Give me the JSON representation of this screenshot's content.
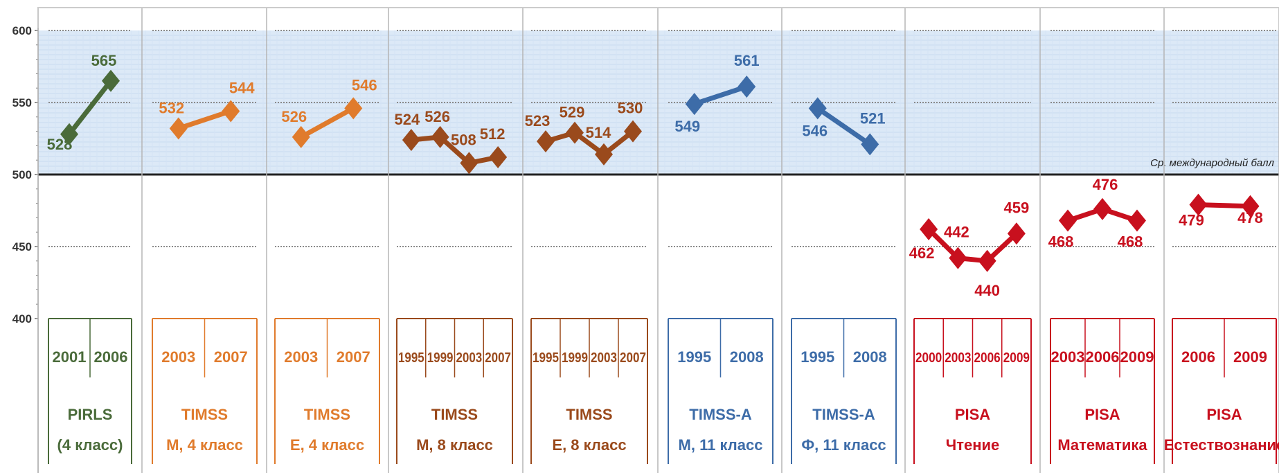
{
  "chart_data": {
    "type": "line",
    "title": "",
    "xlabel": "",
    "ylabel": "",
    "ylim": [
      400,
      600
    ],
    "yticks": [
      400,
      450,
      500,
      550,
      600
    ],
    "grid": true,
    "reference_line": {
      "value": 500,
      "label": "Ср. международный балл"
    },
    "highlight_band": [
      500,
      600
    ],
    "colors": {
      "green": "#4a6b3a",
      "orange": "#e07b2c",
      "brown": "#9a4a1c",
      "blue": "#3d6ca8",
      "red": "#c8101e",
      "band": "#dce9f7"
    },
    "groups": [
      {
        "name_line1": "PIRLS",
        "name_line2": "(4 класс)",
        "color": "#4a6b3a",
        "years": [
          "2001",
          "2006"
        ],
        "values": [
          528,
          565
        ]
      },
      {
        "name_line1": "TIMSS",
        "name_line2": "М, 4 класс",
        "color": "#e07b2c",
        "years": [
          "2003",
          "2007"
        ],
        "values": [
          532,
          544
        ]
      },
      {
        "name_line1": "TIMSS",
        "name_line2": "Е, 4 класс",
        "color": "#e07b2c",
        "years": [
          "2003",
          "2007"
        ],
        "values": [
          526,
          546
        ]
      },
      {
        "name_line1": "TIMSS",
        "name_line2": "М, 8 класс",
        "color": "#9a4a1c",
        "years": [
          "1995",
          "1999",
          "2003",
          "2007"
        ],
        "values": [
          524,
          526,
          508,
          512
        ]
      },
      {
        "name_line1": "TIMSS",
        "name_line2": "Е, 8 класс",
        "color": "#9a4a1c",
        "years": [
          "1995",
          "1999",
          "2003",
          "2007"
        ],
        "values": [
          523,
          529,
          514,
          530
        ]
      },
      {
        "name_line1": "TIMSS-A",
        "name_line2": "М, 11 класс",
        "color": "#3d6ca8",
        "years": [
          "1995",
          "2008"
        ],
        "values": [
          549,
          561
        ]
      },
      {
        "name_line1": "TIMSS-A",
        "name_line2": "Ф, 11 класс",
        "color": "#3d6ca8",
        "years": [
          "1995",
          "2008"
        ],
        "values": [
          546,
          521
        ]
      },
      {
        "name_line1": "PISA",
        "name_line2": "Чтение",
        "color": "#c8101e",
        "years": [
          "2000",
          "2003",
          "2006",
          "2009"
        ],
        "values": [
          462,
          442,
          440,
          459
        ]
      },
      {
        "name_line1": "PISA",
        "name_line2": "Математика",
        "color": "#c8101e",
        "years": [
          "2003",
          "2006",
          "2009"
        ],
        "values": [
          468,
          476,
          468
        ]
      },
      {
        "name_line1": "PISA",
        "name_line2": "Естествознание",
        "color": "#c8101e",
        "years": [
          "2006",
          "2009"
        ],
        "values": [
          479,
          478
        ]
      }
    ]
  }
}
